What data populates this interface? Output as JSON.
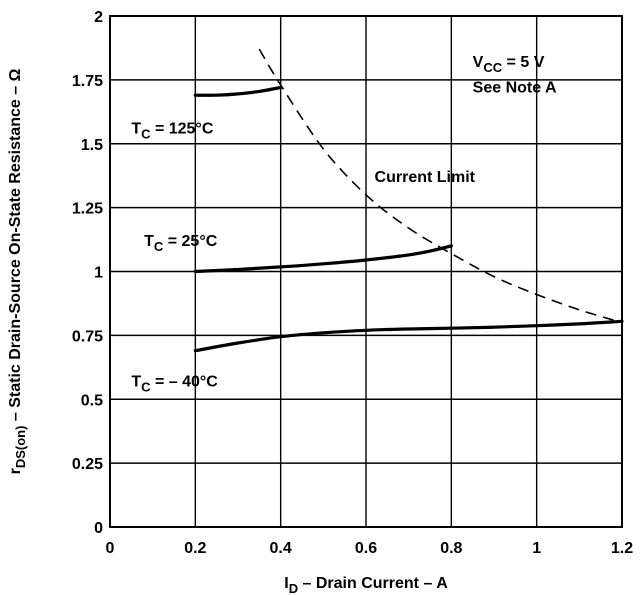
{
  "chart_data": {
    "type": "line",
    "xlabel": {
      "main": "I",
      "sub": "D",
      "rest": " – Drain Current – A"
    },
    "ylabel": {
      "main": "r",
      "sub": "DS(on)",
      "rest": " – Static Drain-Source On-State Resistance – Ω"
    },
    "xlim": [
      0,
      1.2
    ],
    "ylim": [
      0,
      2
    ],
    "x_ticks": [
      {
        "value": 0,
        "label": "0"
      },
      {
        "value": 0.2,
        "label": "0.2"
      },
      {
        "value": 0.4,
        "label": "0.4"
      },
      {
        "value": 0.6,
        "label": "0.6"
      },
      {
        "value": 0.8,
        "label": "0.8"
      },
      {
        "value": 1,
        "label": "1"
      },
      {
        "value": 1.2,
        "label": "1.2"
      }
    ],
    "y_ticks": [
      {
        "value": 0,
        "label": "0"
      },
      {
        "value": 0.25,
        "label": "0.25"
      },
      {
        "value": 0.5,
        "label": "0.5"
      },
      {
        "value": 0.75,
        "label": "0.75"
      },
      {
        "value": 1,
        "label": "1"
      },
      {
        "value": 1.25,
        "label": "1.25"
      },
      {
        "value": 1.5,
        "label": "1.5"
      },
      {
        "value": 1.75,
        "label": "1.75"
      },
      {
        "value": 2,
        "label": "2"
      }
    ],
    "grid": true,
    "series": [
      {
        "label": {
          "main": "T",
          "sub": "C",
          "rest": " = 125°C"
        },
        "label_at": [
          0.05,
          1.54
        ],
        "style": "solid",
        "x": [
          0.2,
          0.25,
          0.3,
          0.35,
          0.4
        ],
        "y": [
          1.69,
          1.69,
          1.695,
          1.705,
          1.72
        ]
      },
      {
        "label": {
          "main": "T",
          "sub": "C",
          "rest": " = 25°C"
        },
        "label_at": [
          0.08,
          1.1
        ],
        "style": "solid",
        "x": [
          0.2,
          0.3,
          0.4,
          0.5,
          0.6,
          0.7,
          0.75,
          0.8
        ],
        "y": [
          1.0,
          1.008,
          1.018,
          1.03,
          1.045,
          1.065,
          1.08,
          1.1
        ]
      },
      {
        "label": {
          "main": "T",
          "sub": "C",
          "rest": " = – 40°C"
        },
        "label_at": [
          0.05,
          0.55
        ],
        "style": "solid",
        "x": [
          0.2,
          0.3,
          0.4,
          0.5,
          0.6,
          0.7,
          0.8,
          0.9,
          1.0,
          1.1,
          1.2
        ],
        "y": [
          0.69,
          0.72,
          0.745,
          0.76,
          0.77,
          0.775,
          0.778,
          0.782,
          0.788,
          0.795,
          0.805
        ]
      },
      {
        "label": {
          "main": "Current  Limit",
          "sub": "",
          "rest": ""
        },
        "label_at": [
          0.62,
          1.35
        ],
        "style": "dashed",
        "x": [
          0.35,
          0.4,
          0.5,
          0.6,
          0.7,
          0.8,
          0.9,
          1.0,
          1.1,
          1.2
        ],
        "y": [
          1.87,
          1.73,
          1.48,
          1.3,
          1.17,
          1.07,
          0.98,
          0.91,
          0.85,
          0.8
        ]
      }
    ],
    "annotations": [
      {
        "main": "V",
        "sub": "CC",
        "rest": " = 5 V",
        "at": [
          0.85,
          1.8
        ]
      },
      {
        "main": "See Note A",
        "sub": "",
        "rest": "",
        "at": [
          0.85,
          1.7
        ]
      }
    ]
  }
}
